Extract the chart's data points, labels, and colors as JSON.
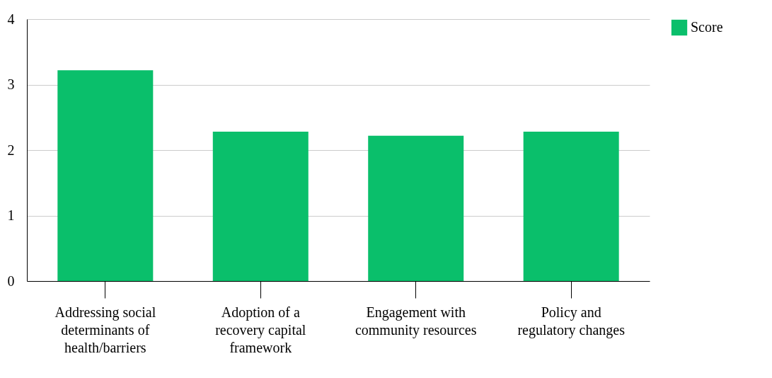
{
  "chart_data": {
    "type": "bar",
    "categories": [
      "Addressing social determinants of health/barriers",
      "Adoption of a recovery capital framework",
      "Engagement with community resources",
      "Policy and regulatory changes"
    ],
    "series": [
      {
        "name": "Score",
        "color": "#0abf6b",
        "values": [
          3.22,
          2.28,
          2.22,
          2.28
        ]
      }
    ],
    "ylim": [
      0,
      4
    ],
    "yticks": [
      0,
      1,
      2,
      3,
      4
    ],
    "grid": "y",
    "legend": "top right"
  }
}
